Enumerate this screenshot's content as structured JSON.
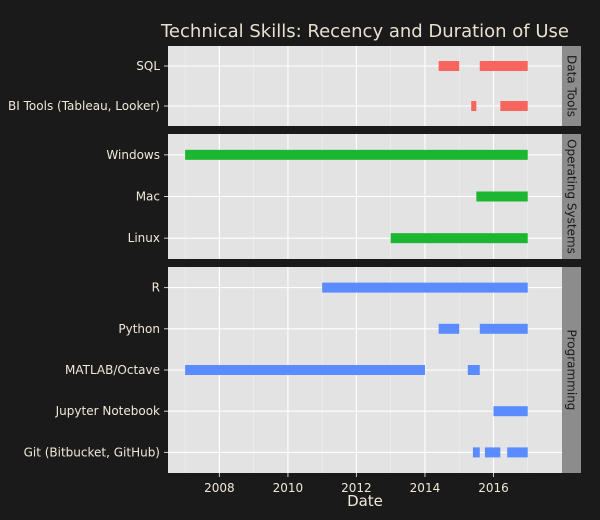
{
  "chart_data": {
    "type": "bar",
    "orientation": "horizontal-range",
    "title": "Technical Skills: Recency and Duration of Use",
    "xlabel": "Date",
    "ylabel": "",
    "xlim": [
      2006.5,
      2018.0
    ],
    "x_ticks": [
      2008,
      2010,
      2012,
      2014,
      2016
    ],
    "grid": true,
    "legend": "none",
    "facets": [
      {
        "name": "Data Tools",
        "color": "#f8655e",
        "skills": [
          {
            "label": "SQL",
            "intervals": [
              [
                2014.4,
                2015.0
              ],
              [
                2015.6,
                2017.0
              ]
            ]
          },
          {
            "label": "BI Tools (Tableau, Looker)",
            "intervals": [
              [
                2015.35,
                2015.5
              ],
              [
                2016.2,
                2017.0
              ]
            ]
          }
        ]
      },
      {
        "name": "Operating Systems",
        "color": "#1db631",
        "skills": [
          {
            "label": "Windows",
            "intervals": [
              [
                2007.0,
                2017.0
              ]
            ]
          },
          {
            "label": "Mac",
            "intervals": [
              [
                2015.5,
                2017.0
              ]
            ]
          },
          {
            "label": "Linux",
            "intervals": [
              [
                2013.0,
                2017.0
              ]
            ]
          }
        ]
      },
      {
        "name": "Programming",
        "color": "#5a8cff",
        "skills": [
          {
            "label": "R",
            "intervals": [
              [
                2011.0,
                2017.0
              ]
            ]
          },
          {
            "label": "Python",
            "intervals": [
              [
                2014.4,
                2015.0
              ],
              [
                2015.6,
                2017.0
              ]
            ]
          },
          {
            "label": "MATLAB/Octave",
            "intervals": [
              [
                2007.0,
                2014.0
              ],
              [
                2015.25,
                2015.6
              ]
            ]
          },
          {
            "label": "Jupyter Notebook",
            "intervals": [
              [
                2016.0,
                2017.0
              ]
            ]
          },
          {
            "label": "Git (Bitbucket, GitHub)",
            "intervals": [
              [
                2015.4,
                2015.6
              ],
              [
                2015.75,
                2016.2
              ],
              [
                2016.4,
                2017.0
              ]
            ]
          }
        ]
      }
    ]
  }
}
